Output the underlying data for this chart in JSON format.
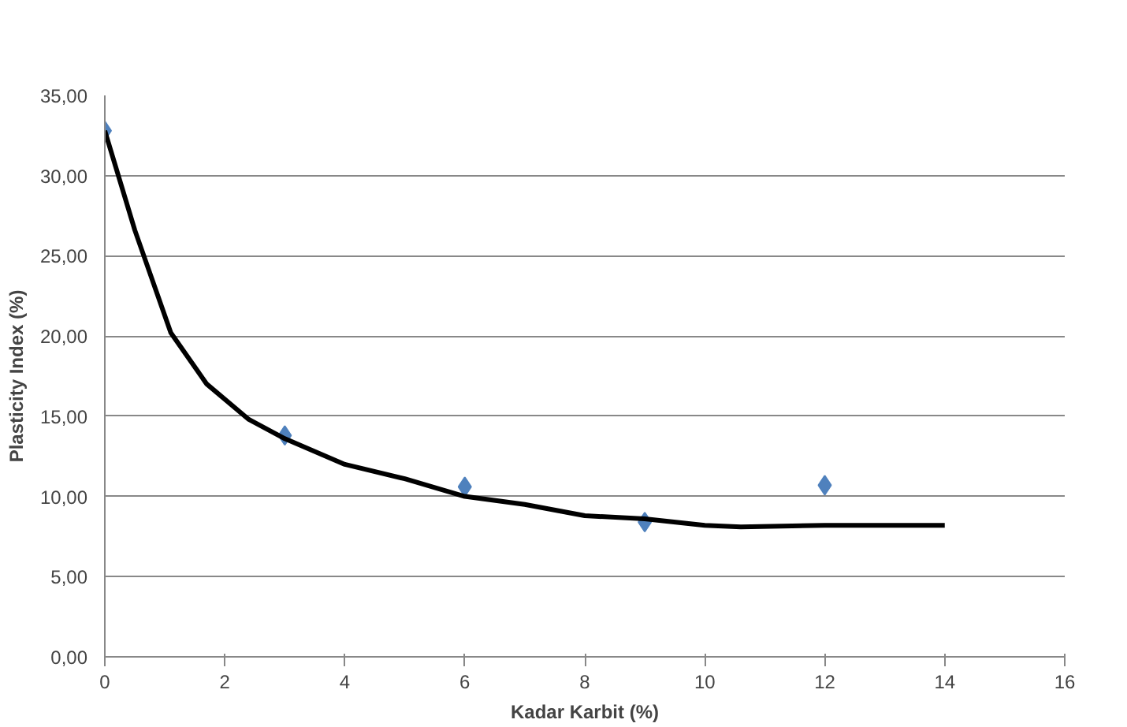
{
  "chart_data": {
    "type": "line",
    "xlabel": "Kadar Karbit (%)",
    "ylabel": "Plasticity Index (%)",
    "xlim": [
      0,
      16
    ],
    "xticks": [
      0,
      2,
      4,
      6,
      8,
      10,
      12,
      14,
      16
    ],
    "ylim": [
      0,
      35
    ],
    "yticks": [
      {
        "value": 0,
        "label": "0,00"
      },
      {
        "value": 5,
        "label": "5,00"
      },
      {
        "value": 10,
        "label": "10,00"
      },
      {
        "value": 15,
        "label": "15,00"
      },
      {
        "value": 20,
        "label": "20,00"
      },
      {
        "value": 25,
        "label": "25,00"
      },
      {
        "value": 30,
        "label": "30,00"
      },
      {
        "value": 35,
        "label": "35,00"
      }
    ],
    "grid": "y",
    "series": [
      {
        "type": "scatter",
        "marker": "diamond",
        "color": "#4f81bd",
        "x": [
          0,
          3,
          6,
          9,
          12
        ],
        "values": [
          32.8,
          13.8,
          10.6,
          8.4,
          10.7
        ]
      },
      {
        "marker": "none",
        "color": "#000000",
        "x": [
          0,
          0.5,
          1.1,
          1.7,
          2.4,
          3,
          4,
          5,
          6,
          7,
          8,
          9,
          10,
          10.6,
          12,
          14
        ],
        "values": [
          32.8,
          26.6,
          20.2,
          17.0,
          14.8,
          13.6,
          12.0,
          11.1,
          10.0,
          9.5,
          8.8,
          8.6,
          8.2,
          8.1,
          8.2,
          8.2
        ]
      }
    ]
  }
}
